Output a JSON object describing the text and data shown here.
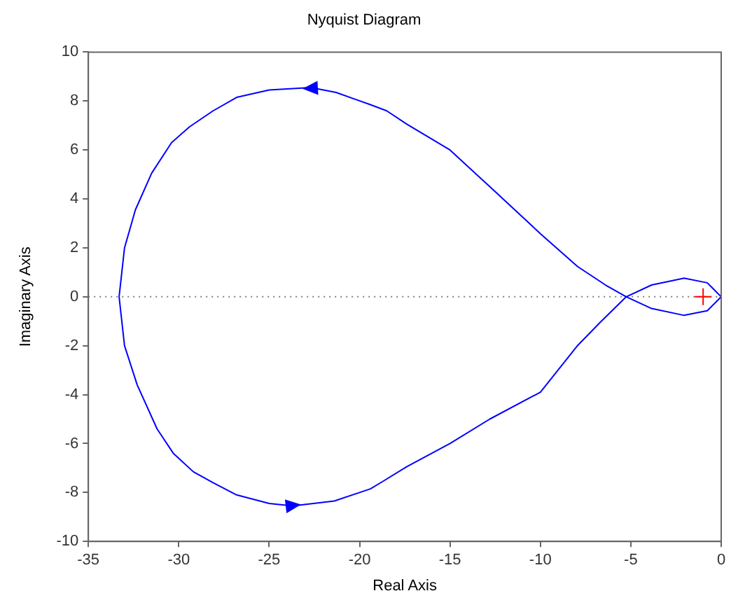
{
  "chart_data": {
    "type": "line",
    "title": "Nyquist Diagram",
    "xlabel": "Real Axis",
    "ylabel": "Imaginary Axis",
    "xlim": [
      -35,
      0
    ],
    "xticks": [
      -35,
      -30,
      -25,
      -20,
      -15,
      -10,
      -5,
      0
    ],
    "ylim": [
      -10,
      10
    ],
    "yticks": [
      -10,
      -8,
      -6,
      -4,
      -2,
      0,
      2,
      4,
      6,
      8,
      10
    ],
    "grid": false,
    "legend": false,
    "line_style": "solid",
    "ref_lines": [
      {
        "axis": "y",
        "value": 0,
        "color": "#808080",
        "line_style": "dotted"
      }
    ],
    "series": [
      {
        "color": "#0000ff",
        "marker": "none",
        "x": [
          -22.7,
          -25,
          -26.8,
          -28.1,
          -29.4,
          -30.4,
          -31.5,
          -32.4,
          -33.0,
          -33.3
        ],
        "values": [
          8.55,
          8.45,
          8.15,
          7.6,
          6.95,
          6.3,
          5.05,
          3.55,
          2.0,
          0
        ]
      },
      {
        "color": "#0000ff",
        "marker": "none",
        "x": [
          -33.3,
          -33.0,
          -32.3,
          -31.2,
          -30.3,
          -29.2,
          -28.1,
          -26.8,
          -25,
          -23.7,
          -21.4,
          -19.4,
          -18.7,
          -17.4,
          -15,
          -12.8,
          -10,
          -7.95,
          -6.7,
          -5.25,
          -3.85,
          -2.05,
          -0.77,
          0
        ],
        "values": [
          0,
          -2.0,
          -3.6,
          -5.4,
          -6.4,
          -7.15,
          -7.6,
          -8.1,
          -8.45,
          -8.55,
          -8.35,
          -7.85,
          -7.54,
          -6.95,
          -6.0,
          -5.0,
          -3.9,
          -2.0,
          -1.05,
          0,
          0.48,
          0.76,
          0.57,
          0
        ]
      },
      {
        "color": "#0000ff",
        "marker": "none",
        "x": [
          0,
          -0.77,
          -2.05,
          -3.85,
          -5.25,
          -6.4,
          -7.95,
          -10,
          -12.8,
          -15,
          -17.4,
          -18.5,
          -19.4,
          -21.3,
          -22.7
        ],
        "values": [
          0,
          -0.57,
          -0.76,
          -0.48,
          0,
          0.48,
          1.24,
          2.58,
          4.5,
          6.0,
          7.06,
          7.6,
          7.85,
          8.35,
          8.55
        ]
      },
      {
        "type": "scatter",
        "color": "#ff0000",
        "marker": "cross",
        "x": [
          -1
        ],
        "values": [
          0
        ]
      }
    ]
  }
}
